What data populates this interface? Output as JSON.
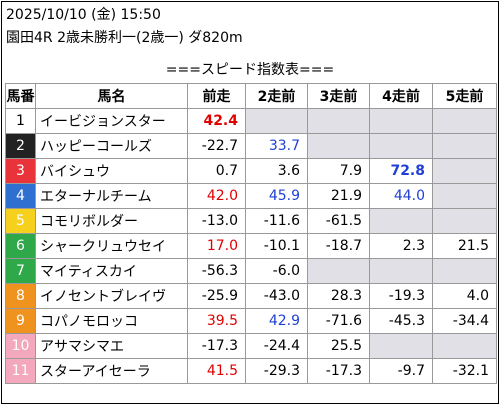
{
  "header": {
    "datetime": "2025/10/10 (金) 15:50",
    "race": "園田4R 2歳未勝利一(2歳一) ダ820m"
  },
  "subtitle": "===スピード指数表===",
  "columns": [
    "馬番",
    "馬名",
    "前走",
    "2走前",
    "3走前",
    "4走前",
    "5走前"
  ],
  "gate_colors": {
    "1": {
      "bg": "#ffffff",
      "fg": "#000000"
    },
    "2": {
      "bg": "#222222",
      "fg": "#ffffff"
    },
    "3": {
      "bg": "#e8333a",
      "fg": "#ffffff"
    },
    "4": {
      "bg": "#2f6fd0",
      "fg": "#ffffff"
    },
    "5": {
      "bg": "#f5d11e",
      "fg": "#ffffff"
    },
    "6": {
      "bg": "#2fa84a",
      "fg": "#ffffff"
    },
    "7": {
      "bg": "#f0921e",
      "fg": "#ffffff"
    },
    "8": {
      "bg": "#f4a8be",
      "fg": "#ffffff"
    }
  },
  "rows": [
    {
      "no": "1",
      "gate": "1",
      "name": "イービジョンスター",
      "vals": [
        {
          "v": "42.4",
          "c": "red-b"
        },
        {
          "v": "",
          "c": "empty"
        },
        {
          "v": "",
          "c": "empty"
        },
        {
          "v": "",
          "c": "empty"
        },
        {
          "v": "",
          "c": "empty"
        }
      ]
    },
    {
      "no": "2",
      "gate": "2",
      "name": "ハッピーコールズ",
      "vals": [
        {
          "v": "-22.7",
          "c": ""
        },
        {
          "v": "33.7",
          "c": "blue"
        },
        {
          "v": "",
          "c": "empty"
        },
        {
          "v": "",
          "c": "empty"
        },
        {
          "v": "",
          "c": "empty"
        }
      ]
    },
    {
      "no": "3",
      "gate": "3",
      "name": "バイシュウ",
      "vals": [
        {
          "v": "0.7",
          "c": ""
        },
        {
          "v": "3.6",
          "c": ""
        },
        {
          "v": "7.9",
          "c": ""
        },
        {
          "v": "72.8",
          "c": "blue-b"
        },
        {
          "v": "",
          "c": "empty"
        }
      ]
    },
    {
      "no": "4",
      "gate": "4",
      "name": "エターナルチーム",
      "vals": [
        {
          "v": "42.0",
          "c": "red"
        },
        {
          "v": "45.9",
          "c": "blue"
        },
        {
          "v": "21.9",
          "c": ""
        },
        {
          "v": "44.0",
          "c": "blue"
        },
        {
          "v": "",
          "c": "empty"
        }
      ]
    },
    {
      "no": "5",
      "gate": "5",
      "name": "コモリボルダー",
      "vals": [
        {
          "v": "-13.0",
          "c": ""
        },
        {
          "v": "-11.6",
          "c": ""
        },
        {
          "v": "-61.5",
          "c": ""
        },
        {
          "v": "",
          "c": "empty"
        },
        {
          "v": "",
          "c": "empty"
        }
      ]
    },
    {
      "no": "6",
      "gate": "6",
      "name": "シャークリュウセイ",
      "vals": [
        {
          "v": "17.0",
          "c": "red"
        },
        {
          "v": "-10.1",
          "c": ""
        },
        {
          "v": "-18.7",
          "c": ""
        },
        {
          "v": "2.3",
          "c": ""
        },
        {
          "v": "21.5",
          "c": ""
        }
      ]
    },
    {
      "no": "7",
      "gate": "6",
      "name": "マイティスカイ",
      "vals": [
        {
          "v": "-56.3",
          "c": ""
        },
        {
          "v": "-6.0",
          "c": ""
        },
        {
          "v": "",
          "c": "empty"
        },
        {
          "v": "",
          "c": "empty"
        },
        {
          "v": "",
          "c": "empty"
        }
      ]
    },
    {
      "no": "8",
      "gate": "7",
      "name": "イノセントブレイヴ",
      "vals": [
        {
          "v": "-25.9",
          "c": ""
        },
        {
          "v": "-43.0",
          "c": ""
        },
        {
          "v": "28.3",
          "c": ""
        },
        {
          "v": "-19.3",
          "c": ""
        },
        {
          "v": "4.0",
          "c": ""
        }
      ]
    },
    {
      "no": "9",
      "gate": "7",
      "name": "コパノモロッコ",
      "vals": [
        {
          "v": "39.5",
          "c": "red"
        },
        {
          "v": "42.9",
          "c": "blue"
        },
        {
          "v": "-71.6",
          "c": ""
        },
        {
          "v": "-45.3",
          "c": ""
        },
        {
          "v": "-34.4",
          "c": ""
        }
      ]
    },
    {
      "no": "10",
      "gate": "8",
      "name": "アサマシマエ",
      "vals": [
        {
          "v": "-17.3",
          "c": ""
        },
        {
          "v": "-24.4",
          "c": ""
        },
        {
          "v": "25.5",
          "c": ""
        },
        {
          "v": "",
          "c": "empty"
        },
        {
          "v": "",
          "c": "empty"
        }
      ]
    },
    {
      "no": "11",
      "gate": "8",
      "name": "スターアイセーラ",
      "vals": [
        {
          "v": "41.5",
          "c": "red"
        },
        {
          "v": "-29.3",
          "c": ""
        },
        {
          "v": "-17.3",
          "c": ""
        },
        {
          "v": "-9.7",
          "c": ""
        },
        {
          "v": "-32.1",
          "c": ""
        }
      ]
    }
  ]
}
